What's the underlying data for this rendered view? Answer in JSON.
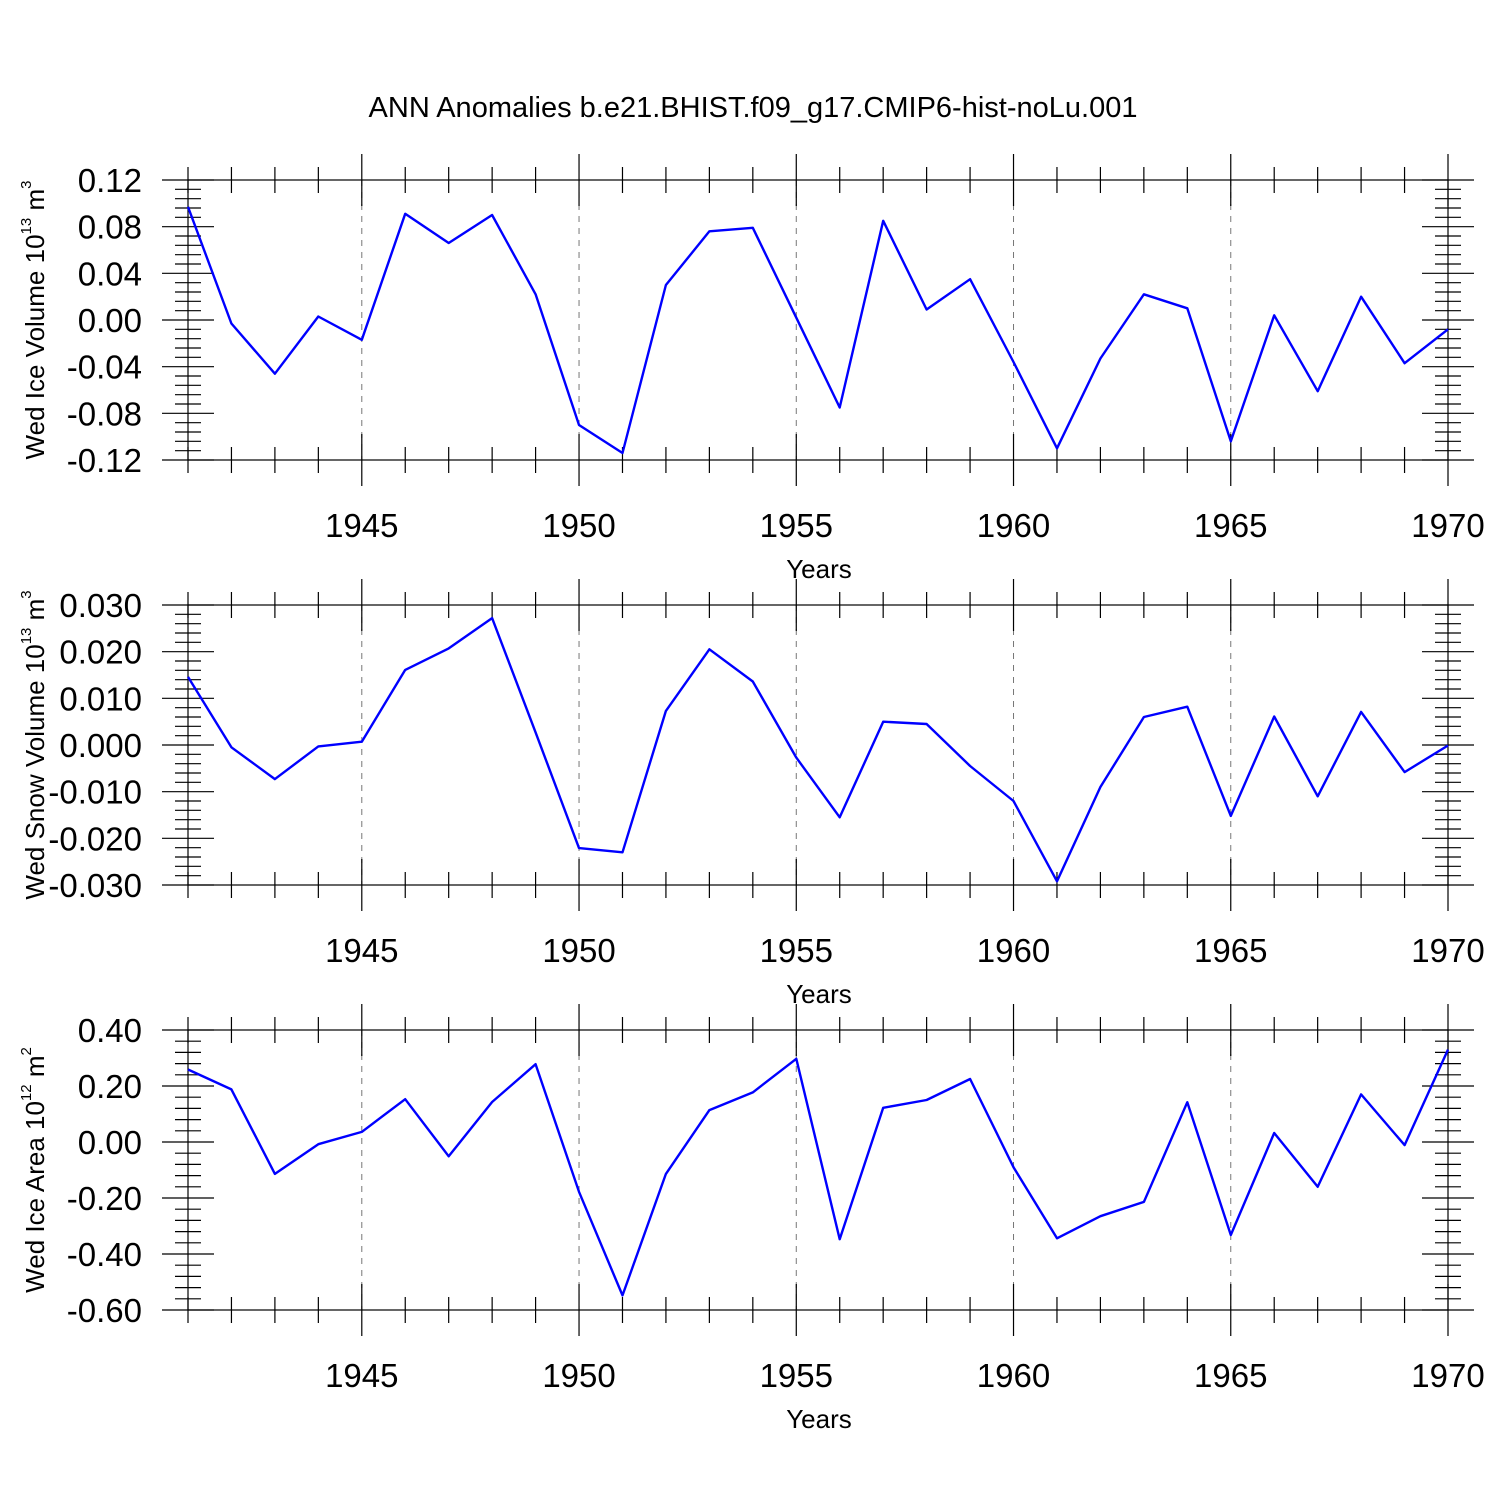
{
  "title": "ANN Anomalies b.e21.BHIST.f09_g17.CMIP6-hist-noLu.001",
  "line_color": "#0000ff",
  "chart_data": [
    {
      "type": "line",
      "xlabel": "Years",
      "ylabel": "Wed Ice Volume 10^13 m^3",
      "ylabel_parts": {
        "base": "Wed Ice Volume 10",
        "exp": "13",
        "unit": " m",
        "unit_exp": "3"
      },
      "xlim": [
        1941,
        1970
      ],
      "ylim": [
        -0.12,
        0.12
      ],
      "x_ticks": [
        1945,
        1950,
        1955,
        1960,
        1965,
        1970
      ],
      "x_tick_labels": [
        "1945",
        "1950",
        "1955",
        "1960",
        "1965",
        "1970"
      ],
      "y_ticks": [
        -0.12,
        -0.08,
        -0.04,
        0.0,
        0.04,
        0.08,
        0.12
      ],
      "y_tick_labels": [
        "-0.12",
        "-0.08",
        "-0.04",
        "0.00",
        "0.04",
        "0.08",
        "0.12"
      ],
      "grid": "vertical dashed at major x ticks",
      "x": [
        1941,
        1942,
        1943,
        1944,
        1945,
        1946,
        1947,
        1948,
        1949,
        1950,
        1951,
        1952,
        1953,
        1954,
        1955,
        1956,
        1957,
        1958,
        1959,
        1960,
        1961,
        1962,
        1963,
        1964,
        1965,
        1966,
        1967,
        1968,
        1969,
        1970
      ],
      "series": [
        {
          "values": [
            0.097,
            -0.003,
            -0.046,
            0.003,
            -0.017,
            0.091,
            0.066,
            0.09,
            0.022,
            -0.09,
            -0.114,
            0.03,
            0.076,
            0.079,
            0.002,
            -0.075,
            0.085,
            0.009,
            0.035,
            -0.036,
            -0.11,
            -0.033,
            0.022,
            0.01,
            -0.104,
            0.004,
            -0.061,
            0.02,
            -0.037,
            -0.008
          ]
        }
      ]
    },
    {
      "type": "line",
      "xlabel": "Years",
      "ylabel": "Wed Snow Volume 10^13 m^3",
      "ylabel_parts": {
        "base": "Wed Snow Volume 10",
        "exp": "13",
        "unit": " m",
        "unit_exp": "3"
      },
      "xlim": [
        1941,
        1970
      ],
      "ylim": [
        -0.03,
        0.03
      ],
      "x_ticks": [
        1945,
        1950,
        1955,
        1960,
        1965,
        1970
      ],
      "x_tick_labels": [
        "1945",
        "1950",
        "1955",
        "1960",
        "1965",
        "1970"
      ],
      "y_ticks": [
        -0.03,
        -0.02,
        -0.01,
        0.0,
        0.01,
        0.02,
        0.03
      ],
      "y_tick_labels": [
        "-0.030",
        "-0.020",
        "-0.010",
        "0.000",
        "0.010",
        "0.020",
        "0.030"
      ],
      "grid": "vertical dashed at major x ticks",
      "x": [
        1941,
        1942,
        1943,
        1944,
        1945,
        1946,
        1947,
        1948,
        1949,
        1950,
        1951,
        1952,
        1953,
        1954,
        1955,
        1956,
        1957,
        1958,
        1959,
        1960,
        1961,
        1962,
        1963,
        1964,
        1965,
        1966,
        1967,
        1968,
        1969,
        1970
      ],
      "series": [
        {
          "values": [
            0.0146,
            -0.0005,
            -0.0073,
            -0.0003,
            0.0007,
            0.0161,
            0.0207,
            0.0272,
            0.0027,
            -0.0221,
            -0.023,
            0.0073,
            0.0205,
            0.0136,
            -0.0027,
            -0.0155,
            0.005,
            0.0045,
            -0.0045,
            -0.012,
            -0.0292,
            -0.009,
            0.006,
            0.0082,
            -0.0152,
            0.0061,
            -0.011,
            0.0071,
            -0.0058,
            -0.0001
          ]
        }
      ]
    },
    {
      "type": "line",
      "xlabel": "Years",
      "ylabel": "Wed Ice Area 10^12 m^2",
      "ylabel_parts": {
        "base": "Wed Ice Area 10",
        "exp": "12",
        "unit": " m",
        "unit_exp": "2"
      },
      "xlim": [
        1941,
        1970
      ],
      "ylim": [
        -0.6,
        0.4
      ],
      "x_ticks": [
        1945,
        1950,
        1955,
        1960,
        1965,
        1970
      ],
      "x_tick_labels": [
        "1945",
        "1950",
        "1955",
        "1960",
        "1965",
        "1970"
      ],
      "y_ticks": [
        -0.6,
        -0.4,
        -0.2,
        0.0,
        0.2,
        0.4
      ],
      "y_tick_labels": [
        "-0.60",
        "-0.40",
        "-0.20",
        "0.00",
        "0.20",
        "0.40"
      ],
      "grid": "vertical dashed at major x ticks",
      "x": [
        1941,
        1942,
        1943,
        1944,
        1945,
        1946,
        1947,
        1948,
        1949,
        1950,
        1951,
        1952,
        1953,
        1954,
        1955,
        1956,
        1957,
        1958,
        1959,
        1960,
        1961,
        1962,
        1963,
        1964,
        1965,
        1966,
        1967,
        1968,
        1969,
        1970
      ],
      "series": [
        {
          "values": [
            0.259,
            0.188,
            -0.114,
            -0.008,
            0.036,
            0.153,
            -0.051,
            0.143,
            0.278,
            -0.178,
            -0.548,
            -0.114,
            0.114,
            0.177,
            0.297,
            -0.347,
            0.122,
            0.15,
            0.225,
            -0.09,
            -0.344,
            -0.265,
            -0.214,
            0.142,
            -0.332,
            0.032,
            -0.16,
            0.17,
            -0.011,
            0.33
          ]
        }
      ]
    }
  ]
}
